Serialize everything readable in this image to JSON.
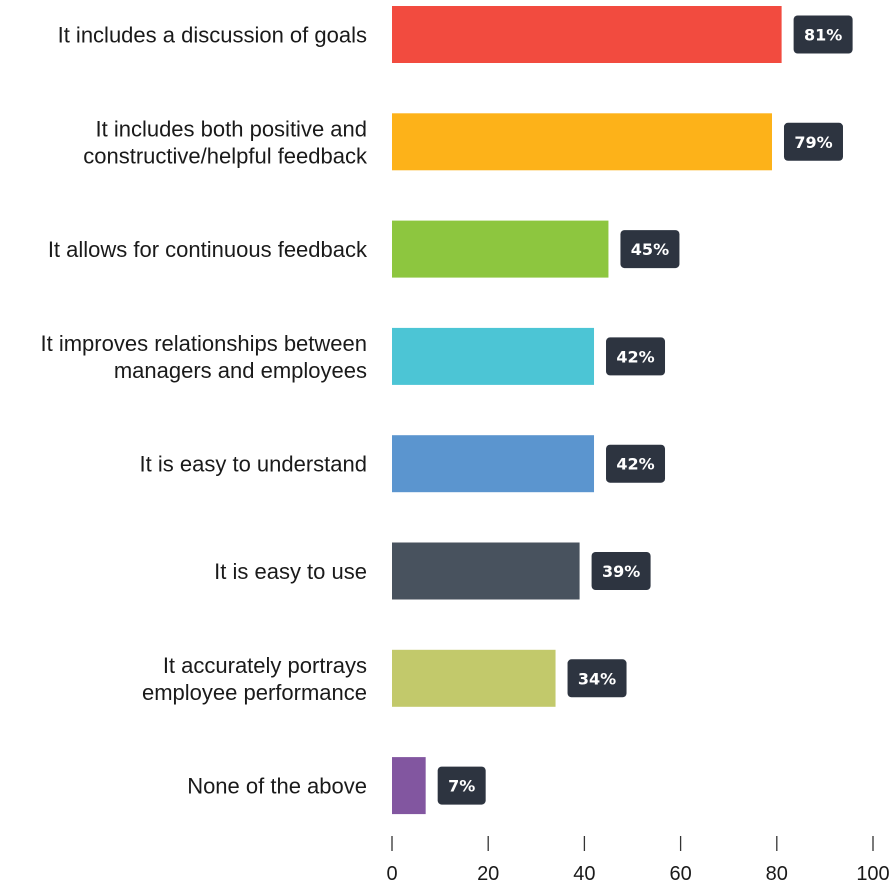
{
  "chart_data": {
    "type": "bar",
    "orientation": "horizontal",
    "categories": [
      "It includes a discussion of goals",
      "It includes both positive and constructive/helpful feedback",
      "It allows for continuous feedback",
      "It improves relationships between managers and employees",
      "It is easy to understand",
      "It is easy to use",
      "It accurately portrays employee performance",
      "None of the above"
    ],
    "category_lines": [
      [
        "It includes a discussion of goals"
      ],
      [
        "It includes both positive and",
        "constructive/helpful feedback"
      ],
      [
        "It allows for continuous feedback"
      ],
      [
        "It improves relationships between",
        "managers and employees"
      ],
      [
        "It is easy to understand"
      ],
      [
        "It is easy to use"
      ],
      [
        "It accurately portrays",
        "employee performance"
      ],
      [
        "None of the above"
      ]
    ],
    "values": [
      81,
      79,
      45,
      42,
      42,
      39,
      34,
      7
    ],
    "value_labels": [
      "81%",
      "79%",
      "45%",
      "42%",
      "42%",
      "39%",
      "34%",
      "7%"
    ],
    "colors": [
      "#f24b3f",
      "#fdb219",
      "#8dc63f",
      "#4cc5d5",
      "#5b95cf",
      "#48525e",
      "#c2c96b",
      "#8256a0"
    ],
    "label_badge_color": "#2d3440",
    "xlim": [
      0,
      100
    ],
    "xticks": [
      0,
      20,
      40,
      60,
      80,
      100
    ],
    "title": "",
    "xlabel": "",
    "ylabel": "",
    "grid": false,
    "legend": "none"
  }
}
